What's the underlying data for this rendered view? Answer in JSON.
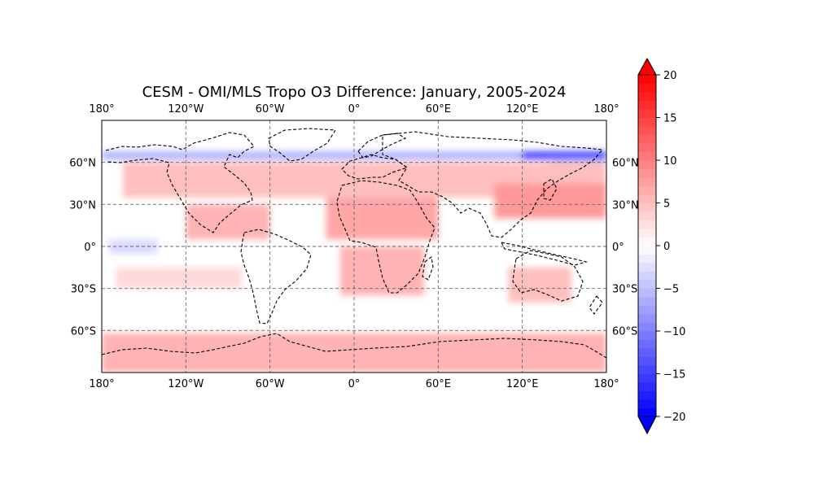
{
  "figure": {
    "title": "CESM - OMI/MLS Tropo O3 Difference: January, 2005-2024"
  },
  "map_data": {
    "type": "heatmap",
    "projection": "PlateCarree",
    "xlim": [
      -180,
      180
    ],
    "ylim": [
      -90,
      90
    ],
    "grid": true,
    "coastlines": true,
    "longitude_ticks": [
      {
        "value": -180,
        "label": "180°"
      },
      {
        "value": -120,
        "label": "120°W"
      },
      {
        "value": -60,
        "label": "60°W"
      },
      {
        "value": 0,
        "label": "0°"
      },
      {
        "value": 60,
        "label": "60°E"
      },
      {
        "value": 120,
        "label": "120°E"
      },
      {
        "value": 180,
        "label": "180°"
      }
    ],
    "latitude_ticks": [
      {
        "value": 60,
        "label": "60°N"
      },
      {
        "value": 30,
        "label": "30°N"
      },
      {
        "value": 0,
        "label": "0°"
      },
      {
        "value": -30,
        "label": "30°S"
      },
      {
        "value": -60,
        "label": "60°S"
      }
    ],
    "difference_bands": [
      {
        "lat_range": [
          62,
          68
        ],
        "lon_range": [
          -180,
          180
        ],
        "value": -6
      },
      {
        "lat_range": [
          62,
          68
        ],
        "lon_range": [
          120,
          180
        ],
        "value": -14
      },
      {
        "lat_range": [
          55,
          62
        ],
        "lon_range": [
          140,
          180
        ],
        "value": -4
      },
      {
        "lat_range": [
          35,
          60
        ],
        "lon_range": [
          -165,
          180
        ],
        "value": 5
      },
      {
        "lat_range": [
          20,
          45
        ],
        "lon_range": [
          100,
          180
        ],
        "value": 8
      },
      {
        "lat_range": [
          5,
          30
        ],
        "lon_range": [
          -120,
          -60
        ],
        "value": 6
      },
      {
        "lat_range": [
          5,
          35
        ],
        "lon_range": [
          -20,
          60
        ],
        "value": 7
      },
      {
        "lat_range": [
          -5,
          5
        ],
        "lon_range": [
          -175,
          -140
        ],
        "value": -3
      },
      {
        "lat_range": [
          -35,
          0
        ],
        "lon_range": [
          -10,
          50
        ],
        "value": 6
      },
      {
        "lat_range": [
          -30,
          -15
        ],
        "lon_range": [
          -170,
          -80
        ],
        "value": 3
      },
      {
        "lat_range": [
          -40,
          -15
        ],
        "lon_range": [
          110,
          155
        ],
        "value": 5
      },
      {
        "lat_range": [
          -90,
          -62
        ],
        "lon_range": [
          -180,
          180
        ],
        "value": 6
      }
    ]
  },
  "colorbar": {
    "vmin": -20,
    "vmax": 20,
    "levels": 40,
    "extend": "both",
    "colormap": "bwr",
    "ticks": [
      {
        "value": 20,
        "label": "20"
      },
      {
        "value": 15,
        "label": "15"
      },
      {
        "value": 10,
        "label": "10"
      },
      {
        "value": 5,
        "label": "5"
      },
      {
        "value": 0,
        "label": "0"
      },
      {
        "value": -5,
        "label": "−5"
      },
      {
        "value": -10,
        "label": "−10"
      },
      {
        "value": -15,
        "label": "−15"
      },
      {
        "value": -20,
        "label": "−20"
      }
    ]
  }
}
